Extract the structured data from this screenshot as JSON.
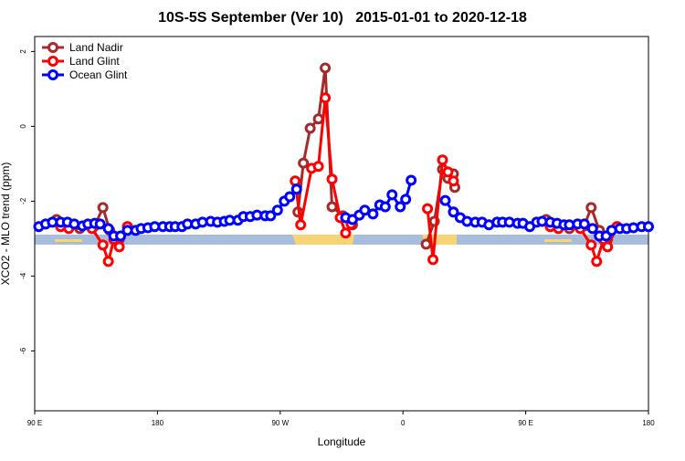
{
  "chart_data": {
    "type": "line",
    "title": "10S-5S September (Ver 10)   2015-01-01 to 2020-12-18",
    "xlabel": "Longitude",
    "ylabel": "XCO2 - MLO trend (ppm)",
    "xlim": [
      90,
      540
    ],
    "ylim": [
      -7.6,
      2.4
    ],
    "xticks": [
      {
        "value": 90,
        "label": "90 E"
      },
      180,
      {
        "value": 270,
        "label": "90 W"
      },
      {
        "value": 360,
        "label": "0"
      },
      {
        "value": 450,
        "label": "90 E"
      },
      {
        "value": 540,
        "label": "180"
      }
    ],
    "yticks": [
      -6,
      -4,
      -2,
      0,
      2
    ],
    "legend": "top-left",
    "series": [
      {
        "name": "Land Nadir",
        "color": "#a52a2a",
        "x": [
          106,
          113,
          123,
          134,
          140,
          145,
          152,
          158,
          null,
          283,
          287,
          292,
          298,
          303,
          308,
          316,
          323,
          null,
          377,
          383,
          389,
          393,
          397,
          398,
          null,
          465,
          472,
          482,
          493,
          498,
          504,
          510,
          517
        ],
        "values": [
          -2.49,
          -2.61,
          -2.73,
          -2.66,
          -2.17,
          -2.78,
          -3.02,
          -2.68,
          null,
          -2.29,
          -0.98,
          -0.05,
          0.2,
          1.56,
          -2.15,
          -2.39,
          -2.63,
          null,
          -3.15,
          -2.54,
          -1.15,
          -1.39,
          -1.27,
          -1.63,
          null,
          -2.49,
          -2.61,
          -2.73,
          -2.66,
          -2.17,
          -2.78,
          -3.02,
          -2.68
        ]
      },
      {
        "name": "Land Glint",
        "color": "#ff0000",
        "x": [
          109,
          115,
          132,
          140,
          144,
          148,
          152,
          158,
          null,
          281,
          285,
          293,
          298,
          303,
          308,
          314,
          318,
          322,
          null,
          378,
          382,
          389,
          393,
          397,
          null,
          468,
          474,
          490,
          498,
          502,
          507,
          510,
          517
        ],
        "values": [
          -2.68,
          -2.73,
          -2.73,
          -3.17,
          -3.61,
          -3.02,
          -3.22,
          -2.68,
          null,
          -1.46,
          -2.63,
          -1.12,
          -1.07,
          0.76,
          -1.41,
          -2.44,
          -2.85,
          -2.61,
          null,
          -2.2,
          -3.56,
          -0.9,
          -1.22,
          -1.46,
          null,
          -2.68,
          -2.73,
          -2.73,
          -3.17,
          -3.61,
          -3.02,
          -3.22,
          -2.68
        ]
      },
      {
        "name": "Ocean Glint",
        "color": "#0000ff",
        "x": [
          93,
          98,
          103,
          109,
          114,
          119,
          125,
          129,
          134,
          138,
          144,
          148,
          153,
          158,
          164,
          168,
          173,
          178,
          184,
          189,
          193,
          198,
          202,
          208,
          213,
          219,
          224,
          229,
          233,
          239,
          243,
          248,
          253,
          259,
          263,
          268,
          273,
          277,
          282,
          null,
          318,
          323,
          328,
          332,
          338,
          343,
          347,
          352,
          358,
          362,
          366,
          null,
          391,
          397,
          402,
          407,
          413,
          418,
          423,
          429,
          433,
          438,
          444,
          448,
          453,
          458,
          462,
          468,
          473,
          478,
          482,
          488,
          493,
          499,
          504,
          509,
          513,
          519,
          524,
          529,
          535,
          540
        ],
        "values": [
          -2.68,
          -2.61,
          -2.56,
          -2.56,
          -2.56,
          -2.61,
          -2.66,
          -2.61,
          -2.59,
          -2.61,
          -2.73,
          -2.93,
          -2.93,
          -2.78,
          -2.78,
          -2.73,
          -2.71,
          -2.68,
          -2.68,
          -2.68,
          -2.68,
          -2.68,
          -2.61,
          -2.61,
          -2.56,
          -2.54,
          -2.56,
          -2.54,
          -2.51,
          -2.51,
          -2.41,
          -2.41,
          -2.37,
          -2.39,
          -2.39,
          -2.24,
          -2.0,
          -1.88,
          -1.68,
          null,
          -2.44,
          -2.49,
          -2.37,
          -2.24,
          -2.34,
          -2.1,
          -2.15,
          -1.83,
          -2.15,
          -1.95,
          -1.44,
          null,
          -1.98,
          -2.29,
          -2.44,
          -2.54,
          -2.56,
          -2.56,
          -2.63,
          -2.56,
          -2.56,
          -2.56,
          -2.59,
          -2.59,
          -2.68,
          -2.56,
          -2.54,
          -2.56,
          -2.59,
          -2.63,
          -2.63,
          -2.61,
          -2.61,
          -2.73,
          -2.93,
          -2.93,
          -2.78,
          -2.73,
          -2.73,
          -2.71,
          -2.68,
          -2.68
        ]
      }
    ]
  }
}
